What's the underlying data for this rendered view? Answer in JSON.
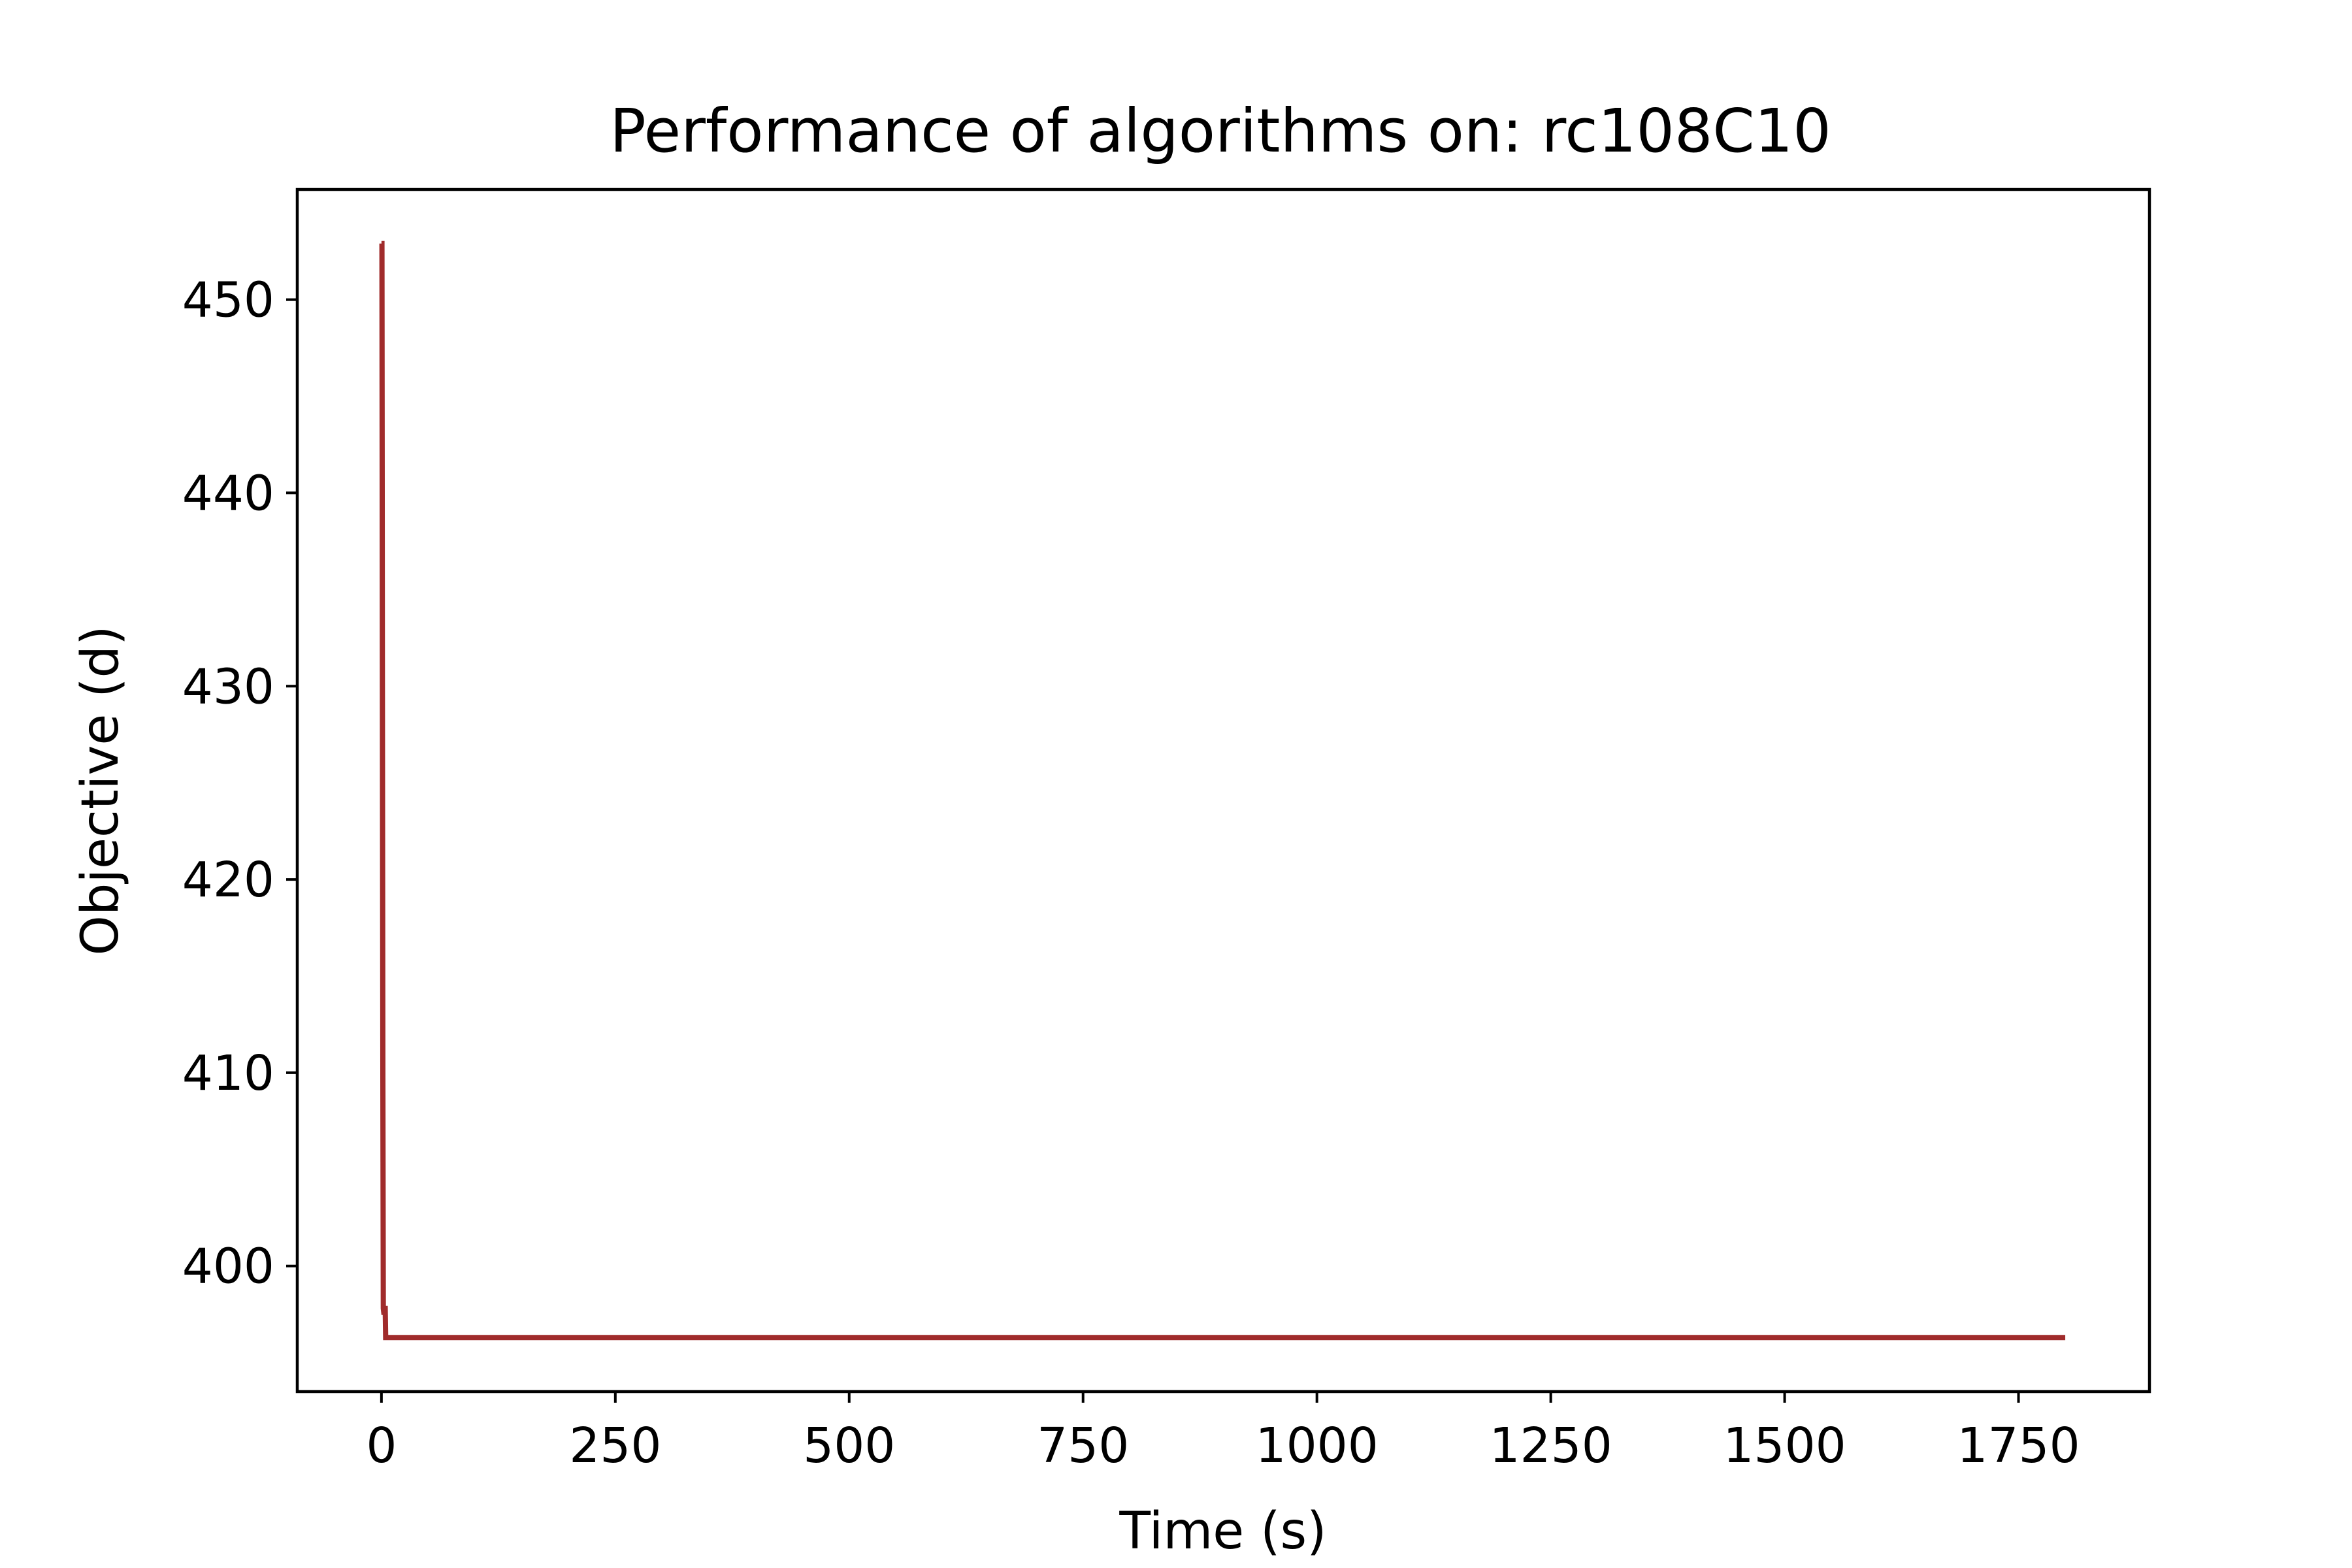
{
  "chart_data": {
    "type": "line",
    "title": "Performance of algorithms on: rc108C10",
    "xlabel": "Time (s)",
    "ylabel": "Objective (d)",
    "xlim": [
      -90,
      1890
    ],
    "ylim": [
      393.5,
      455.7
    ],
    "xticks": [
      0,
      250,
      500,
      750,
      1000,
      1250,
      1500,
      1750
    ],
    "yticks": [
      400,
      410,
      420,
      430,
      440,
      450
    ],
    "grid": false,
    "colors": {
      "series": "#a02b2b",
      "axes": "#000000",
      "background": "#ffffff"
    },
    "series": [
      {
        "x": [
          0,
          0.5,
          1.0,
          1.5,
          2.0,
          2.5,
          3.0,
          3.5,
          4.0,
          4.5,
          5.0,
          6.0,
          7.0,
          1800
        ],
        "y": [
          452.9,
          452.9,
          430.0,
          410.0,
          397.8,
          397.6,
          397.6,
          397.8,
          397.8,
          396.3,
          396.3,
          396.3,
          396.3,
          396.3
        ]
      }
    ]
  }
}
